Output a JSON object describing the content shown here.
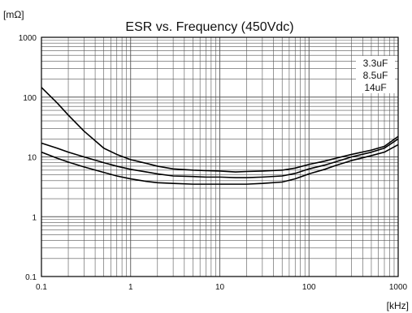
{
  "chart_data": {
    "type": "line",
    "title": "ESR vs. Frequency (450Vdc)",
    "ylabel": "[mΩ]",
    "xlabel": "[kHz]",
    "x_scale": "log",
    "y_scale": "log",
    "xlim": [
      0.1,
      1000
    ],
    "ylim": [
      0.1,
      1000
    ],
    "x_ticks": [
      "0.1",
      "1",
      "10",
      "100",
      "1000"
    ],
    "y_ticks": [
      "1000",
      "100",
      "10",
      "1",
      "0.1"
    ],
    "grid": true,
    "legend_position": "top-right",
    "legend_entries": [
      "3.3uF",
      "8.5uF",
      "14uF"
    ],
    "series": [
      {
        "x": [
          0.1,
          0.15,
          0.2,
          0.3,
          0.5,
          0.7,
          1,
          1.5,
          2,
          3,
          5,
          7,
          10,
          15,
          20,
          30,
          50,
          70,
          100,
          150,
          200,
          300,
          500,
          700,
          1000
        ],
        "y": [
          145,
          80,
          50,
          27,
          14,
          11,
          9,
          7.8,
          7,
          6.3,
          6,
          5.9,
          5.8,
          5.6,
          5.7,
          5.8,
          6.0,
          6.5,
          7.5,
          8.5,
          9.5,
          11,
          13,
          15,
          22
        ]
      },
      {
        "x": [
          0.1,
          0.15,
          0.2,
          0.3,
          0.5,
          0.7,
          1,
          1.5,
          2,
          3,
          5,
          7,
          10,
          15,
          20,
          30,
          50,
          70,
          100,
          150,
          200,
          300,
          500,
          700,
          1000
        ],
        "y": [
          17,
          14,
          12,
          10,
          8,
          7,
          6.2,
          5.6,
          5.2,
          4.8,
          4.7,
          4.6,
          4.6,
          4.5,
          4.5,
          4.6,
          4.8,
          5.3,
          6.3,
          7.3,
          8.3,
          10,
          12,
          14,
          20
        ]
      },
      {
        "x": [
          0.1,
          0.15,
          0.2,
          0.3,
          0.5,
          0.7,
          1,
          1.5,
          2,
          3,
          5,
          7,
          10,
          15,
          20,
          30,
          50,
          70,
          100,
          150,
          200,
          300,
          500,
          700,
          1000
        ],
        "y": [
          12,
          9.5,
          8.2,
          6.8,
          5.5,
          4.8,
          4.3,
          3.9,
          3.7,
          3.6,
          3.5,
          3.5,
          3.5,
          3.5,
          3.5,
          3.6,
          3.8,
          4.3,
          5.2,
          6.2,
          7.2,
          8.7,
          10.5,
          12,
          16
        ]
      }
    ]
  }
}
